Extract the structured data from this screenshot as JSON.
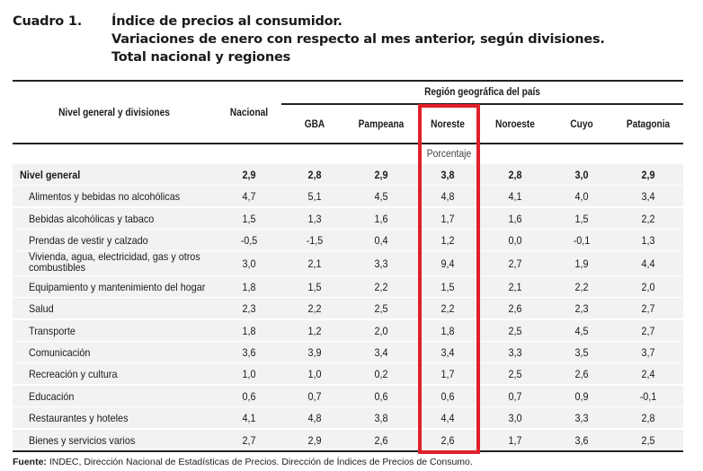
{
  "title": {
    "label": "Cuadro 1.",
    "lines": [
      "Índice de precios al consumidor.",
      "Variaciones de enero con respecto al mes anterior, según divisiones.",
      "Total nacional y regiones"
    ]
  },
  "header": {
    "first_col": "Nivel general y divisiones",
    "nacional": "Nacional",
    "region_group": "Región geográfica del país",
    "regions": [
      "GBA",
      "Pampeana",
      "Noreste",
      "Noroeste",
      "Cuyo",
      "Patagonia"
    ],
    "unit": "Porcentaje"
  },
  "highlight_color": "#e0202a",
  "rows": [
    {
      "name": "Nivel general",
      "values": [
        "2,9",
        "2,8",
        "2,9",
        "3,8",
        "2,8",
        "3,0",
        "2,9"
      ]
    },
    {
      "name": "Alimentos y bebidas no alcohólicas",
      "values": [
        "4,7",
        "5,1",
        "4,5",
        "4,8",
        "4,1",
        "4,0",
        "3,4"
      ]
    },
    {
      "name": "Bebidas alcohólicas y tabaco",
      "values": [
        "1,5",
        "1,3",
        "1,6",
        "1,7",
        "1,6",
        "1,5",
        "2,2"
      ]
    },
    {
      "name": "Prendas de vestir y calzado",
      "values": [
        "-0,5",
        "-1,5",
        "0,4",
        "1,2",
        "0,0",
        "-0,1",
        "1,3"
      ]
    },
    {
      "name": "Vivienda, agua, electricidad, gas y otros combustibles",
      "values": [
        "3,0",
        "2,1",
        "3,3",
        "9,4",
        "2,7",
        "1,9",
        "4,4"
      ]
    },
    {
      "name": "Equipamiento y mantenimiento del hogar",
      "values": [
        "1,8",
        "1,5",
        "2,2",
        "1,5",
        "2,1",
        "2,2",
        "2,0"
      ]
    },
    {
      "name": "Salud",
      "values": [
        "2,3",
        "2,2",
        "2,5",
        "2,2",
        "2,6",
        "2,3",
        "2,7"
      ]
    },
    {
      "name": "Transporte",
      "values": [
        "1,8",
        "1,2",
        "2,0",
        "1,8",
        "2,5",
        "4,5",
        "2,7"
      ]
    },
    {
      "name": "Comunicación",
      "values": [
        "3,6",
        "3,9",
        "3,4",
        "3,4",
        "3,3",
        "3,5",
        "3,7"
      ]
    },
    {
      "name": "Recreación y cultura",
      "values": [
        "1,0",
        "1,0",
        "0,2",
        "1,7",
        "2,5",
        "2,6",
        "2,4"
      ]
    },
    {
      "name": "Educación",
      "values": [
        "0,6",
        "0,7",
        "0,6",
        "0,6",
        "0,7",
        "0,9",
        "-0,1"
      ]
    },
    {
      "name": "Restaurantes y hoteles",
      "values": [
        "4,1",
        "4,8",
        "3,8",
        "4,4",
        "3,0",
        "3,3",
        "2,8"
      ]
    },
    {
      "name": "Bienes y servicios varios",
      "values": [
        "2,7",
        "2,9",
        "2,6",
        "2,6",
        "1,7",
        "3,6",
        "2,5"
      ]
    }
  ],
  "footer": {
    "label": "Fuente:",
    "text": " INDEC, Dirección Nacional de Estadísticas de Precios. Dirección de Índices de Precios de Consumo."
  }
}
